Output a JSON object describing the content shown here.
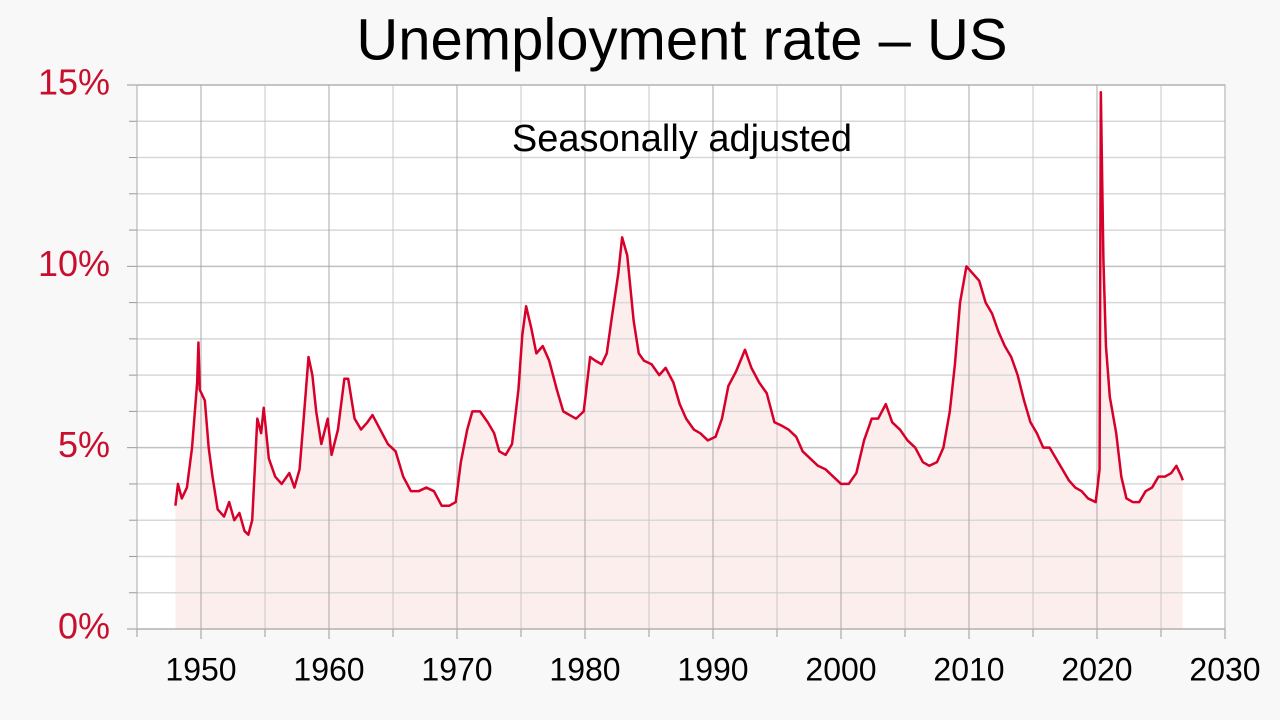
{
  "chart_data": {
    "type": "line",
    "title": "Unemployment rate – US",
    "subtitle": "Seasonally adjusted",
    "series": [
      {
        "name": "Unemployment rate",
        "color": "#d7002a",
        "area_color": "#fdeeee",
        "x": [
          1948.0,
          1948.2,
          1948.5,
          1948.9,
          1949.3,
          1949.7,
          1949.8,
          1949.9,
          1950.3,
          1950.6,
          1950.9,
          1951.3,
          1951.8,
          1952.2,
          1952.6,
          1953.0,
          1953.4,
          1953.7,
          1954.0,
          1954.4,
          1954.7,
          1954.9,
          1955.3,
          1955.8,
          1956.3,
          1956.9,
          1957.3,
          1957.7,
          1958.0,
          1958.4,
          1958.7,
          1959.0,
          1959.4,
          1959.9,
          1960.2,
          1960.7,
          1961.2,
          1961.5,
          1962.0,
          1962.5,
          1963.0,
          1963.4,
          1964.0,
          1964.6,
          1965.2,
          1965.8,
          1966.4,
          1967.0,
          1967.6,
          1968.2,
          1968.8,
          1969.4,
          1969.9,
          1970.3,
          1970.8,
          1971.2,
          1971.8,
          1972.4,
          1972.9,
          1973.3,
          1973.8,
          1974.3,
          1974.8,
          1975.1,
          1975.4,
          1975.8,
          1976.2,
          1976.7,
          1977.2,
          1977.8,
          1978.3,
          1978.8,
          1979.3,
          1979.9,
          1980.4,
          1980.8,
          1981.3,
          1981.7,
          1982.1,
          1982.6,
          1982.9,
          1983.3,
          1983.8,
          1984.2,
          1984.6,
          1985.2,
          1985.8,
          1986.3,
          1986.9,
          1987.4,
          1987.9,
          1988.5,
          1989.0,
          1989.6,
          1990.2,
          1990.7,
          1991.2,
          1991.8,
          1992.5,
          1993.0,
          1993.6,
          1994.2,
          1994.8,
          1995.4,
          1995.9,
          1996.5,
          1997.0,
          1997.6,
          1998.2,
          1998.8,
          1999.4,
          2000.0,
          2000.6,
          2001.2,
          2001.8,
          2002.4,
          2002.9,
          2003.5,
          2004.0,
          2004.6,
          2005.2,
          2005.8,
          2006.4,
          2006.9,
          2007.5,
          2008.0,
          2008.5,
          2008.9,
          2009.3,
          2009.8,
          2010.3,
          2010.8,
          2011.3,
          2011.8,
          2012.3,
          2012.8,
          2013.3,
          2013.8,
          2014.3,
          2014.8,
          2015.3,
          2015.8,
          2016.3,
          2016.8,
          2017.3,
          2017.8,
          2018.3,
          2018.8,
          2019.3,
          2019.9,
          2020.2,
          2020.3,
          2020.5,
          2020.7,
          2021.0,
          2021.5,
          2021.9,
          2022.3,
          2022.8,
          2023.3,
          2023.8,
          2024.3,
          2024.8,
          2025.3,
          2025.8,
          2026.2,
          2026.6,
          2026.7
        ],
        "values": [
          3.4,
          4.0,
          3.6,
          3.9,
          5.0,
          6.8,
          7.9,
          6.6,
          6.3,
          5.0,
          4.2,
          3.3,
          3.1,
          3.5,
          3.0,
          3.2,
          2.7,
          2.6,
          3.0,
          5.8,
          5.4,
          6.1,
          4.7,
          4.2,
          4.0,
          4.3,
          3.9,
          4.4,
          5.7,
          7.5,
          7.0,
          6.0,
          5.1,
          5.8,
          4.8,
          5.5,
          6.9,
          6.9,
          5.8,
          5.5,
          5.7,
          5.9,
          5.5,
          5.1,
          4.9,
          4.2,
          3.8,
          3.8,
          3.9,
          3.8,
          3.4,
          3.4,
          3.5,
          4.6,
          5.5,
          6.0,
          6.0,
          5.7,
          5.4,
          4.9,
          4.8,
          5.1,
          6.6,
          8.1,
          8.9,
          8.3,
          7.6,
          7.8,
          7.4,
          6.6,
          6.0,
          5.9,
          5.8,
          6.0,
          7.5,
          7.4,
          7.3,
          7.6,
          8.6,
          9.8,
          10.8,
          10.3,
          8.5,
          7.6,
          7.4,
          7.3,
          7.0,
          7.2,
          6.8,
          6.2,
          5.8,
          5.5,
          5.4,
          5.2,
          5.3,
          5.8,
          6.7,
          7.1,
          7.7,
          7.2,
          6.8,
          6.5,
          5.7,
          5.6,
          5.5,
          5.3,
          4.9,
          4.7,
          4.5,
          4.4,
          4.2,
          4.0,
          4.0,
          4.3,
          5.2,
          5.8,
          5.8,
          6.2,
          5.7,
          5.5,
          5.2,
          5.0,
          4.6,
          4.5,
          4.6,
          5.0,
          6.0,
          7.3,
          9.0,
          10.0,
          9.8,
          9.6,
          9.0,
          8.7,
          8.2,
          7.8,
          7.5,
          7.0,
          6.3,
          5.7,
          5.4,
          5.0,
          5.0,
          4.7,
          4.4,
          4.1,
          3.9,
          3.8,
          3.6,
          3.5,
          4.4,
          14.8,
          10.2,
          7.8,
          6.4,
          5.4,
          4.2,
          3.6,
          3.5,
          3.5,
          3.8,
          3.9,
          4.2,
          4.2,
          4.3,
          4.5,
          4.2,
          4.1
        ]
      }
    ],
    "xlim": [
      1945,
      2030
    ],
    "xticks": [
      1950,
      1960,
      1970,
      1980,
      1990,
      2000,
      2010,
      2020,
      2030
    ],
    "xminorticks": [
      1945,
      1955,
      1965,
      1975,
      1985,
      1995,
      2005,
      2015,
      2025
    ],
    "ylim": [
      0,
      15
    ],
    "yticks": [
      {
        "value": 0,
        "label": "0%"
      },
      {
        "value": 5,
        "label": "5%"
      },
      {
        "value": 10,
        "label": "10%"
      },
      {
        "value": 15,
        "label": "15%"
      }
    ],
    "yminorticks": [
      1,
      2,
      3,
      4,
      6,
      7,
      8,
      9,
      11,
      12,
      13,
      14
    ],
    "grid": true
  }
}
